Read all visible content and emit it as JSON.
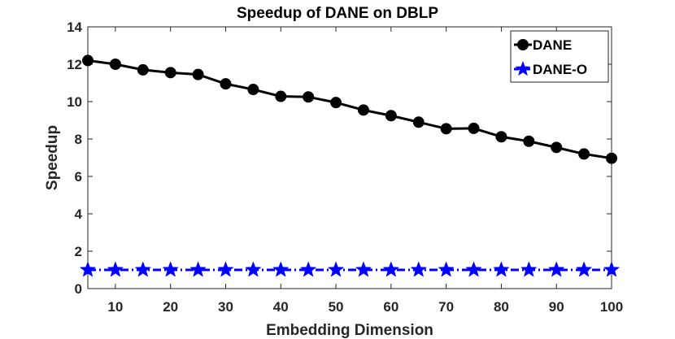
{
  "chart_data": {
    "type": "line",
    "title": "Speedup of DANE on DBLP",
    "xlabel": "Embedding Dimension",
    "ylabel": "Speedup",
    "xlim": [
      5,
      100
    ],
    "ylim": [
      0,
      14
    ],
    "xticks": [
      10,
      20,
      30,
      40,
      50,
      60,
      70,
      80,
      90,
      100
    ],
    "yticks": [
      0,
      2,
      4,
      6,
      8,
      10,
      12,
      14
    ],
    "grid": false,
    "legend_position": "top-right",
    "x": [
      5,
      10,
      15,
      20,
      25,
      30,
      35,
      40,
      45,
      50,
      55,
      60,
      65,
      70,
      75,
      80,
      85,
      90,
      95,
      100
    ],
    "series": [
      {
        "name": "DANE",
        "color": "#000000",
        "marker": "circle",
        "line_style": "solid",
        "values": [
          12.2,
          12.0,
          11.7,
          11.55,
          11.45,
          10.95,
          10.65,
          10.28,
          10.25,
          9.95,
          9.55,
          9.25,
          8.9,
          8.55,
          8.57,
          8.12,
          7.88,
          7.55,
          7.2,
          6.97
        ]
      },
      {
        "name": "DANE-O",
        "color": "#0000ff",
        "marker": "star",
        "line_style": "dashdot",
        "values": [
          1,
          1,
          1,
          1,
          1,
          1,
          1,
          1,
          1,
          1,
          1,
          1,
          1,
          1,
          1,
          1,
          1,
          1,
          1,
          1
        ]
      }
    ]
  }
}
